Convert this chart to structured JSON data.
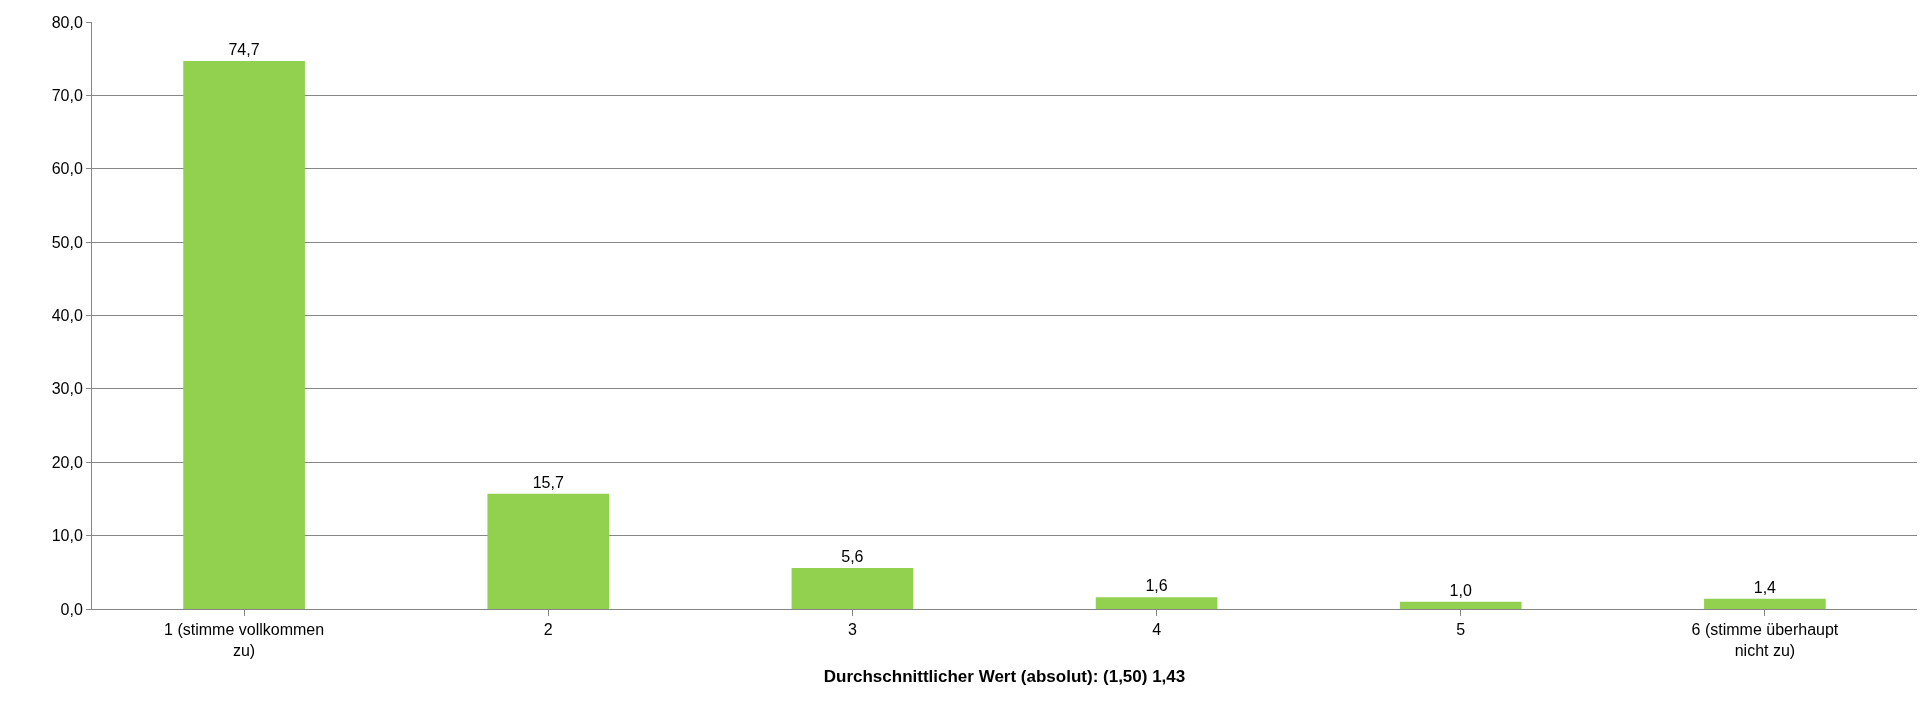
{
  "chart_data": {
    "type": "bar",
    "xlabel": "Durchschnittlicher Wert (absolut): (1,50) 1,43",
    "categories": [
      "1 (stimme vollkommen zu)",
      "2",
      "3",
      "4",
      "5",
      "6 (stimme überhaupt nicht zu)"
    ],
    "values": [
      74.7,
      15.7,
      5.6,
      1.6,
      1.0,
      1.4
    ],
    "value_labels": [
      "74,7",
      "15,7",
      "5,6",
      "1,6",
      "1,0",
      "1,4"
    ],
    "color": "#92d050",
    "ylim": [
      0,
      80
    ],
    "yticks": [
      {
        "value": 0,
        "label": "0,0"
      },
      {
        "value": 10,
        "label": "10,0"
      },
      {
        "value": 20,
        "label": "20,0"
      },
      {
        "value": 30,
        "label": "30,0"
      },
      {
        "value": 40,
        "label": "40,0"
      },
      {
        "value": 50,
        "label": "50,0"
      },
      {
        "value": 60,
        "label": "60,0"
      },
      {
        "value": 70,
        "label": "70,0"
      },
      {
        "value": 80,
        "label": "80,0"
      }
    ],
    "grid": "y",
    "legend": false
  }
}
